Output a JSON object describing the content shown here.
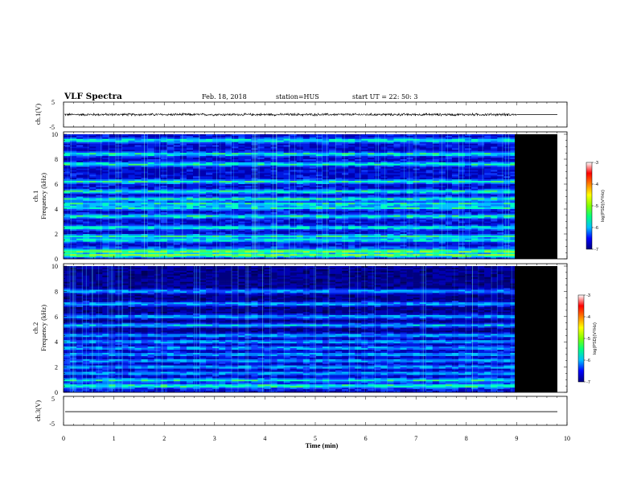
{
  "header": {
    "title": "VLF Spectra",
    "date": "Feb. 18, 2018",
    "station": "station=HUS",
    "start": "start  UT  =   22: 50: 3"
  },
  "panels": {
    "ch1_wave": {
      "ylabel": "ch.1(V)",
      "ytick_top": "5",
      "ytick_bottom": "-5"
    },
    "ch1_spec": {
      "ylabel_1": "ch.1",
      "ylabel_2": "Frequency (kHz)"
    },
    "ch2_spec": {
      "ylabel_1": "ch.2",
      "ylabel_2": "Frequency (kHz)"
    },
    "ch3_wave": {
      "ylabel": "ch.3(V)",
      "ytick_top": "5",
      "ytick_bottom": "-5"
    }
  },
  "colorbar": {
    "ticks": [
      "-3",
      "-4",
      "-5",
      "-6",
      "-7"
    ],
    "label": "log(PSD)(V²/Hz)",
    "colors": [
      "#000080",
      "#0000ff",
      "#00bfff",
      "#00ff80",
      "#80ff00",
      "#ffff00",
      "#ff8000",
      "#ff0000",
      "#ffffff"
    ]
  },
  "chart_data": [
    {
      "type": "line",
      "name": "ch1-waveform",
      "ylabel": "ch.1(V)",
      "ylim": [
        -5,
        5
      ],
      "xlim": [
        0,
        10
      ],
      "data_end_min": 9.0,
      "mean_value": 0.0,
      "amplitude_approx": 0.4
    },
    {
      "type": "heatmap",
      "name": "ch1-spectrogram",
      "xlabel": "Time (min)",
      "ylabel": "Frequency (kHz)",
      "xlim": [
        0,
        10
      ],
      "ylim": [
        0,
        10
      ],
      "data_end_min": 9.0,
      "no_data_end_min": 9.8,
      "yticks": [
        "0",
        "2",
        "4",
        "6",
        "8",
        "10"
      ],
      "color_scale": {
        "min": -7,
        "max": -3,
        "label": "log(PSD)(V²/Hz)"
      },
      "bands_khz": [
        0.3,
        0.6,
        1.5,
        1.8,
        2.5,
        3.4,
        4.1,
        4.4,
        4.8,
        5.4,
        6.2,
        7.6,
        8.4,
        9.5
      ]
    },
    {
      "type": "heatmap",
      "name": "ch2-spectrogram",
      "xlabel": "Time (min)",
      "ylabel": "Frequency (kHz)",
      "xlim": [
        0,
        10
      ],
      "ylim": [
        0,
        10
      ],
      "data_end_min": 9.0,
      "no_data_end_min": 9.8,
      "yticks": [
        "0",
        "2",
        "4",
        "6",
        "8",
        "10"
      ],
      "color_scale": {
        "min": -7,
        "max": -3,
        "label": "log(PSD)(V²/Hz)"
      },
      "bands_khz": [
        0.5,
        1.0,
        1.5,
        2.0,
        2.5,
        3.0,
        3.5,
        4.0,
        4.5,
        5.3,
        6.0,
        7.0,
        8.0
      ]
    },
    {
      "type": "line",
      "name": "ch3-waveform",
      "ylabel": "ch.3(V)",
      "xlabel": "Time (min)",
      "ylim": [
        -5,
        5
      ],
      "xlim": [
        0,
        10
      ],
      "mean_value": -0.3,
      "amplitude_approx": 0.0
    }
  ],
  "xaxis": {
    "label": "Time (min)",
    "ticks": [
      "0",
      "1",
      "2",
      "3",
      "4",
      "5",
      "6",
      "7",
      "8",
      "9",
      "10"
    ]
  }
}
